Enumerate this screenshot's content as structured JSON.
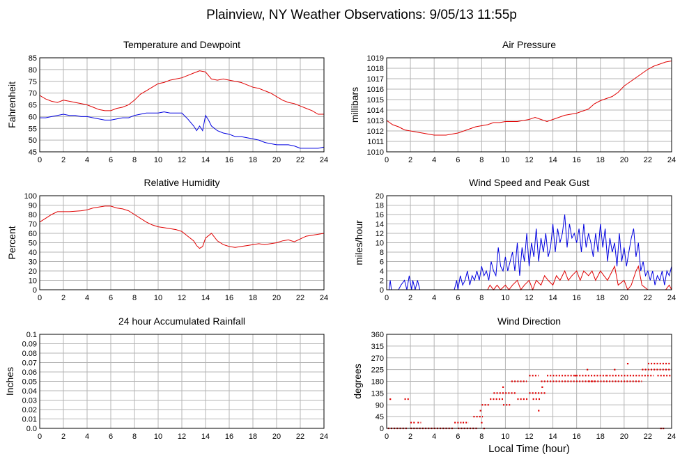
{
  "page_title": "Plainview, NY Weather Observations: 9/05/13 11:55p",
  "colors": {
    "red": "#e00000",
    "blue": "#0000e0",
    "grid": "#b4b4b4"
  },
  "chart_data": [
    {
      "id": "temp",
      "type": "line",
      "title": "Temperature and Dewpoint",
      "ylabel": "Fahrenheit",
      "xlabel": "",
      "xlim": [
        0,
        24
      ],
      "ylim": [
        45,
        85
      ],
      "x_ticks": [
        0,
        2,
        4,
        6,
        8,
        10,
        12,
        14,
        16,
        18,
        20,
        22,
        24
      ],
      "y_ticks": [
        "45",
        "50",
        "55",
        "60",
        "65",
        "70",
        "75",
        "80",
        "85"
      ],
      "grid": true,
      "series": [
        {
          "color": "red",
          "x": [
            0,
            0.5,
            1,
            1.5,
            2,
            2.5,
            3,
            3.5,
            4,
            4.5,
            5,
            5.5,
            6,
            6.5,
            7,
            7.5,
            8,
            8.5,
            9,
            9.5,
            10,
            10.5,
            11,
            11.5,
            12,
            12.5,
            13,
            13.5,
            14,
            14.5,
            15,
            15.5,
            16,
            16.5,
            17,
            17.5,
            18,
            18.5,
            19,
            19.5,
            20,
            20.5,
            21,
            21.5,
            22,
            22.5,
            23,
            23.5,
            24
          ],
          "values": [
            69,
            67.5,
            66.5,
            66,
            67,
            66.5,
            66,
            65.5,
            65,
            64,
            63,
            62.5,
            62.5,
            63.5,
            64,
            65,
            67,
            69.5,
            71,
            72.5,
            74,
            74.5,
            75.5,
            76,
            76.5,
            77.5,
            78.5,
            79.5,
            79,
            76,
            75.5,
            76,
            75.5,
            75,
            74.5,
            73.5,
            72.5,
            72,
            71,
            70,
            68.5,
            67,
            66,
            65.5,
            64.5,
            63.5,
            62.5,
            61,
            61
          ]
        },
        {
          "color": "blue",
          "x": [
            0,
            0.5,
            1,
            1.5,
            2,
            2.5,
            3,
            3.5,
            4,
            4.5,
            5,
            5.5,
            6,
            6.5,
            7,
            7.5,
            8,
            8.5,
            9,
            9.5,
            10,
            10.5,
            11,
            11.5,
            12,
            12.5,
            13,
            13.25,
            13.5,
            13.75,
            14,
            14.25,
            14.5,
            15,
            15.5,
            16,
            16.5,
            17,
            17.5,
            18,
            18.5,
            19,
            19.5,
            20,
            20.5,
            21,
            21.5,
            22,
            22.5,
            23,
            23.5,
            24
          ],
          "values": [
            59.5,
            59.5,
            60,
            60.5,
            61,
            60.5,
            60.5,
            60,
            60,
            59.5,
            59,
            58.5,
            58.5,
            59,
            59.5,
            59.5,
            60.5,
            61,
            61.5,
            61.5,
            61.5,
            62,
            61.5,
            61.5,
            61.5,
            59,
            56,
            54,
            56,
            54,
            60.5,
            58.5,
            56,
            54,
            53,
            52.5,
            51.5,
            51.5,
            51,
            50.5,
            50,
            49,
            48.5,
            48,
            48,
            48,
            47.5,
            46.5,
            46.5,
            46.5,
            46.5,
            47
          ]
        }
      ]
    },
    {
      "id": "pressure",
      "type": "line",
      "title": "Air Pressure",
      "ylabel": "millibars",
      "xlabel": "",
      "xlim": [
        0,
        24
      ],
      "ylim": [
        1010,
        1019
      ],
      "x_ticks": [
        0,
        2,
        4,
        6,
        8,
        10,
        12,
        14,
        16,
        18,
        20,
        22,
        24
      ],
      "y_ticks": [
        "1010",
        "1011",
        "1012",
        "1013",
        "1014",
        "1015",
        "1016",
        "1017",
        "1018",
        "1019"
      ],
      "grid": true,
      "series": [
        {
          "color": "red",
          "x": [
            0,
            0.5,
            1,
            1.5,
            2,
            2.5,
            3,
            3.5,
            4,
            4.5,
            5,
            5.5,
            6,
            6.5,
            7,
            7.5,
            8,
            8.5,
            9,
            9.5,
            10,
            10.5,
            11,
            11.5,
            12,
            12.5,
            13,
            13.5,
            14,
            14.5,
            15,
            15.5,
            16,
            16.5,
            17,
            17.5,
            18,
            18.5,
            19,
            19.5,
            20,
            20.5,
            21,
            21.5,
            22,
            22.5,
            23,
            23.5,
            24
          ],
          "values": [
            1013,
            1012.6,
            1012.4,
            1012.1,
            1012,
            1011.9,
            1011.8,
            1011.7,
            1011.6,
            1011.6,
            1011.6,
            1011.7,
            1011.8,
            1012,
            1012.2,
            1012.4,
            1012.5,
            1012.6,
            1012.8,
            1012.8,
            1012.9,
            1012.9,
            1012.9,
            1013,
            1013.1,
            1013.3,
            1013.1,
            1012.9,
            1013.1,
            1013.3,
            1013.5,
            1013.6,
            1013.7,
            1013.9,
            1014.1,
            1014.6,
            1014.9,
            1015.1,
            1015.3,
            1015.7,
            1016.3,
            1016.7,
            1017.1,
            1017.5,
            1017.9,
            1018.2,
            1018.4,
            1018.6,
            1018.7
          ]
        }
      ]
    },
    {
      "id": "humidity",
      "type": "line",
      "title": "Relative Humidity",
      "ylabel": "Percent",
      "xlabel": "",
      "xlim": [
        0,
        24
      ],
      "ylim": [
        0,
        100
      ],
      "x_ticks": [
        0,
        2,
        4,
        6,
        8,
        10,
        12,
        14,
        16,
        18,
        20,
        22,
        24
      ],
      "y_ticks": [
        "0",
        "10",
        "20",
        "30",
        "40",
        "50",
        "60",
        "70",
        "80",
        "90",
        "100"
      ],
      "grid": true,
      "series": [
        {
          "color": "red",
          "x": [
            0,
            0.5,
            1,
            1.5,
            2,
            2.5,
            3,
            3.5,
            4,
            4.5,
            5,
            5.5,
            6,
            6.5,
            7,
            7.5,
            8,
            8.5,
            9,
            9.5,
            10,
            10.5,
            11,
            11.5,
            12,
            12.5,
            13,
            13.25,
            13.5,
            13.75,
            14,
            14.5,
            15,
            15.5,
            16,
            16.5,
            17,
            17.5,
            18,
            18.5,
            19,
            19.5,
            20,
            20.5,
            21,
            21.5,
            22,
            22.5,
            23,
            23.5,
            24
          ],
          "values": [
            72,
            76,
            80,
            83,
            83,
            83,
            83.5,
            84,
            85,
            87,
            88,
            89,
            89,
            87,
            86,
            84,
            80,
            76,
            72,
            69,
            67,
            66,
            65,
            64,
            62,
            57,
            52,
            47,
            44,
            46,
            55,
            60,
            52,
            48,
            46,
            45,
            46,
            47,
            48,
            49,
            48,
            49,
            50,
            52,
            53,
            51,
            54,
            57,
            58,
            59,
            60
          ]
        }
      ]
    },
    {
      "id": "wind-speed",
      "type": "line",
      "title": "Wind Speed and Peak Gust",
      "ylabel": "miles/hour",
      "xlabel": "",
      "xlim": [
        0,
        24
      ],
      "ylim": [
        0,
        20
      ],
      "x_ticks": [
        0,
        2,
        4,
        6,
        8,
        10,
        12,
        14,
        16,
        18,
        20,
        22,
        24
      ],
      "y_ticks": [
        "0",
        "2",
        "4",
        "6",
        "8",
        "10",
        "12",
        "14",
        "16",
        "18",
        "20"
      ],
      "grid": true,
      "series": [
        {
          "color": "blue",
          "x": [
            0,
            0.2,
            0.3,
            0.4,
            0.6,
            1,
            1.2,
            1.5,
            1.7,
            1.9,
            2.1,
            2.2,
            2.4,
            2.6,
            2.8,
            3,
            4,
            5,
            5.7,
            5.9,
            6,
            6.2,
            6.4,
            6.6,
            6.8,
            7,
            7.2,
            7.4,
            7.6,
            7.8,
            8,
            8.2,
            8.4,
            8.6,
            8.8,
            9,
            9.2,
            9.4,
            9.6,
            9.8,
            10,
            10.2,
            10.4,
            10.6,
            10.8,
            11,
            11.2,
            11.4,
            11.6,
            11.8,
            12,
            12.2,
            12.4,
            12.6,
            12.8,
            13,
            13.2,
            13.4,
            13.6,
            13.8,
            14,
            14.2,
            14.4,
            14.6,
            14.8,
            15,
            15.2,
            15.4,
            15.6,
            15.8,
            16,
            16.2,
            16.4,
            16.6,
            16.8,
            17,
            17.2,
            17.4,
            17.6,
            17.8,
            18,
            18.2,
            18.4,
            18.6,
            18.8,
            19,
            19.2,
            19.4,
            19.6,
            19.8,
            20,
            20.2,
            20.4,
            20.6,
            20.8,
            21,
            21.2,
            21.4,
            21.6,
            21.8,
            22,
            22.2,
            22.4,
            22.6,
            22.8,
            23,
            23.2,
            23.4,
            23.6,
            23.8,
            24
          ],
          "values": [
            0,
            0,
            2,
            0,
            0,
            0,
            1,
            2,
            0,
            3,
            0,
            2,
            0,
            2,
            0,
            0,
            0,
            0,
            0,
            2,
            0,
            3,
            1,
            2,
            4,
            1,
            3,
            2,
            4,
            2,
            5,
            3,
            4,
            2,
            6,
            4,
            3,
            9,
            5,
            4,
            7,
            4,
            6,
            8,
            4,
            10,
            3,
            9,
            6,
            12,
            5,
            10,
            7,
            13,
            6,
            11,
            8,
            12,
            7,
            9,
            14,
            8,
            13,
            10,
            12,
            16,
            9,
            14,
            11,
            12,
            10,
            13,
            8,
            14,
            9,
            12,
            10,
            7,
            12,
            8,
            14,
            9,
            13,
            6,
            11,
            8,
            10,
            5,
            12,
            6,
            9,
            5,
            8,
            11,
            13,
            7,
            10,
            4,
            6,
            3,
            4,
            2,
            4,
            1,
            3,
            2,
            4,
            1,
            4,
            3,
            5
          ]
        },
        {
          "color": "red",
          "x": [
            0,
            8,
            8.5,
            8.7,
            9,
            9.3,
            9.6,
            10,
            10.3,
            10.6,
            11,
            11.3,
            11.6,
            12,
            12.3,
            12.6,
            13,
            13.3,
            13.6,
            14,
            14.3,
            14.6,
            15,
            15.3,
            15.6,
            16,
            16.3,
            16.6,
            17,
            17.3,
            17.6,
            18,
            18.3,
            18.6,
            19,
            19.2,
            19.5,
            20,
            20.3,
            20.6,
            21,
            21.2,
            21.5,
            22,
            23.5,
            23.8,
            24
          ],
          "values": [
            0,
            0,
            0,
            1,
            0,
            1,
            0,
            1,
            0,
            1,
            2,
            0,
            1,
            2,
            0,
            2,
            1,
            3,
            2,
            1,
            3,
            2,
            4,
            2,
            3,
            4,
            2,
            4,
            3,
            4,
            2,
            4,
            3,
            2,
            4,
            5,
            1,
            2,
            0,
            1,
            4,
            5,
            1,
            0,
            0,
            1,
            0
          ]
        }
      ]
    },
    {
      "id": "rainfall",
      "type": "line",
      "title": "24 hour Accumulated Rainfall",
      "ylabel": "Inches",
      "xlabel": "",
      "xlim": [
        0,
        24
      ],
      "ylim": [
        0,
        0.1
      ],
      "x_ticks": [
        0,
        2,
        4,
        6,
        8,
        10,
        12,
        14,
        16,
        18,
        20,
        22,
        24
      ],
      "y_ticks": [
        "0.0",
        "0.01",
        "0.02",
        "0.03",
        "0.04",
        "0.05",
        "0.06",
        "0.07",
        "0.08",
        "0.09",
        "0.1"
      ],
      "grid": true,
      "series": [
        {
          "color": "red",
          "x": [
            0,
            24
          ],
          "values": [
            0,
            0
          ]
        }
      ]
    },
    {
      "id": "wind-direction",
      "type": "scatter",
      "title": "Wind Direction",
      "ylabel": "degrees",
      "xlabel": "Local Time (hour)",
      "xlim": [
        0,
        24
      ],
      "ylim": [
        0,
        360
      ],
      "x_ticks": [
        0,
        2,
        4,
        6,
        8,
        10,
        12,
        14,
        16,
        18,
        20,
        22,
        24
      ],
      "y_ticks": [
        "0",
        "45",
        "90",
        "135",
        "180",
        "225",
        "270",
        "315",
        "360"
      ],
      "grid": true,
      "segments": [
        {
          "x0": 0.1,
          "x1": 1.7,
          "y": 0
        },
        {
          "x0": 1.5,
          "x1": 1.9,
          "y": 112
        },
        {
          "x0": 2.0,
          "x1": 2.4,
          "y": 22
        },
        {
          "x0": 2.6,
          "x1": 2.9,
          "y": 22
        },
        {
          "x0": 2.0,
          "x1": 5.7,
          "y": 0
        },
        {
          "x0": 5.7,
          "x1": 6.3,
          "y": 22
        },
        {
          "x0": 6.4,
          "x1": 6.9,
          "y": 22
        },
        {
          "x0": 6.0,
          "x1": 7.6,
          "y": 0
        },
        {
          "x0": 7.3,
          "x1": 8.1,
          "y": 45
        },
        {
          "x0": 8.0,
          "x1": 8.7,
          "y": 90
        },
        {
          "x0": 8.7,
          "x1": 9.8,
          "y": 112
        },
        {
          "x0": 9.0,
          "x1": 10.9,
          "y": 135
        },
        {
          "x0": 9.8,
          "x1": 10.4,
          "y": 90
        },
        {
          "x0": 10.5,
          "x1": 11.8,
          "y": 180
        },
        {
          "x0": 11.0,
          "x1": 11.9,
          "y": 112
        },
        {
          "x0": 12.0,
          "x1": 12.8,
          "y": 202
        },
        {
          "x0": 12.0,
          "x1": 13.4,
          "y": 135
        },
        {
          "x0": 12.3,
          "x1": 13.0,
          "y": 112
        },
        {
          "x0": 13.0,
          "x1": 17.5,
          "y": 180
        },
        {
          "x0": 13.5,
          "x1": 18.5,
          "y": 202
        },
        {
          "x0": 17.0,
          "x1": 21.5,
          "y": 180
        },
        {
          "x0": 18.5,
          "x1": 22.5,
          "y": 202
        },
        {
          "x0": 21.5,
          "x1": 24.0,
          "y": 225
        },
        {
          "x0": 22.0,
          "x1": 24.0,
          "y": 248
        },
        {
          "x0": 22.8,
          "x1": 24.0,
          "y": 202
        }
      ],
      "points": [
        [
          0.3,
          112
        ],
        [
          7.9,
          68
        ],
        [
          8.0,
          22
        ],
        [
          8.2,
          0
        ],
        [
          9.8,
          158
        ],
        [
          12.8,
          68
        ],
        [
          13.1,
          158
        ],
        [
          15.9,
          202
        ],
        [
          16.9,
          225
        ],
        [
          19.2,
          225
        ],
        [
          20.3,
          248
        ],
        [
          23.1,
          0
        ],
        [
          23.3,
          0
        ]
      ]
    }
  ]
}
